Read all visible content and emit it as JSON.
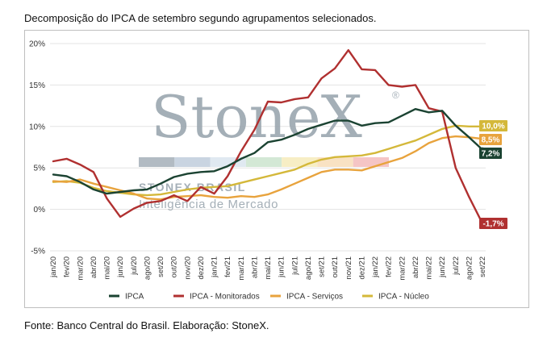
{
  "caption_top": "Decomposição do IPCA de setembro segundo agrupamentos selecionados.",
  "caption_bottom": "Fonte: Banco Central do Brasil. Elaboração: StoneX.",
  "watermark": {
    "brand": "StoneX",
    "registered": "®",
    "line1": "STONEX BRASIL",
    "line2": "Inteligência de Mercado"
  },
  "chart_data": {
    "type": "line",
    "ylim": [
      -5,
      20
    ],
    "y_ticks": [
      -5,
      0,
      5,
      10,
      15,
      20
    ],
    "y_tick_labels": [
      "-5%",
      "0%",
      "5%",
      "10%",
      "15%",
      "20%"
    ],
    "grid": "horizontal",
    "legend_position": "bottom",
    "categories": [
      "jan/20",
      "fev/20",
      "mar/20",
      "abr/20",
      "mai/20",
      "jun/20",
      "jul/20",
      "ago/20",
      "set/20",
      "out/20",
      "nov/20",
      "dez/20",
      "jan/21",
      "fev/21",
      "mar/21",
      "abr/21",
      "mai/21",
      "jun/21",
      "jul/21",
      "ago/21",
      "set/21",
      "out/21",
      "nov/21",
      "dez/21",
      "jan/22",
      "fev/22",
      "mar/22",
      "abr/22",
      "mai/22",
      "jun/22",
      "jul/22",
      "ago/22",
      "set/22"
    ],
    "series": [
      {
        "name": "IPCA",
        "color": "#1b4332",
        "values": [
          4.2,
          4.0,
          3.3,
          2.4,
          1.9,
          2.1,
          2.3,
          2.4,
          3.1,
          3.9,
          4.3,
          4.5,
          4.6,
          5.2,
          6.1,
          6.8,
          8.1,
          8.4,
          9.0,
          9.7,
          10.2,
          10.7,
          10.7,
          10.1,
          10.4,
          10.5,
          11.3,
          12.1,
          11.7,
          11.9,
          10.1,
          8.7,
          7.2
        ],
        "end_label": "7,2%"
      },
      {
        "name": "IPCA - Monitorados",
        "color": "#b03030",
        "values": [
          5.8,
          6.1,
          5.4,
          4.5,
          1.3,
          -0.9,
          0.1,
          0.8,
          1.0,
          1.7,
          1.0,
          2.7,
          1.9,
          4.0,
          7.0,
          9.6,
          13.0,
          12.9,
          13.3,
          13.5,
          15.8,
          17.0,
          19.2,
          16.9,
          16.8,
          15.0,
          14.8,
          15.0,
          12.2,
          11.8,
          5.0,
          1.5,
          -1.7
        ],
        "end_label": "-1,7%"
      },
      {
        "name": "IPCA - Serviços",
        "color": "#e8a33d",
        "values": [
          3.4,
          3.3,
          3.6,
          3.1,
          2.7,
          2.3,
          1.9,
          1.3,
          1.2,
          1.5,
          1.6,
          1.7,
          1.5,
          1.4,
          1.6,
          1.5,
          1.8,
          2.4,
          3.1,
          3.8,
          4.5,
          4.8,
          4.8,
          4.7,
          5.2,
          5.7,
          6.2,
          7.0,
          8.0,
          8.6,
          8.8,
          8.7,
          8.5
        ],
        "end_label": "8,5%"
      },
      {
        "name": "IPCA - Núcleo",
        "color": "#d4b83a",
        "values": [
          3.3,
          3.4,
          3.2,
          2.6,
          2.2,
          2.0,
          1.8,
          1.7,
          1.8,
          2.1,
          2.4,
          2.6,
          2.7,
          2.8,
          3.2,
          3.6,
          4.0,
          4.4,
          4.8,
          5.5,
          6.0,
          6.3,
          6.4,
          6.5,
          6.8,
          7.3,
          7.8,
          8.3,
          9.0,
          9.7,
          10.1,
          10.0,
          10.0
        ],
        "end_label": "10,0%"
      }
    ]
  },
  "colors": {
    "grid": "#e3e3e3",
    "watermark": "#9ba7b0",
    "watermark_blocks": [
      "#9ba7b0",
      "#b9c7d8",
      "#d7e3ec",
      "#c6e0c8",
      "#f4e9b4",
      "#f7d9b0",
      "#f2b4b4"
    ]
  }
}
